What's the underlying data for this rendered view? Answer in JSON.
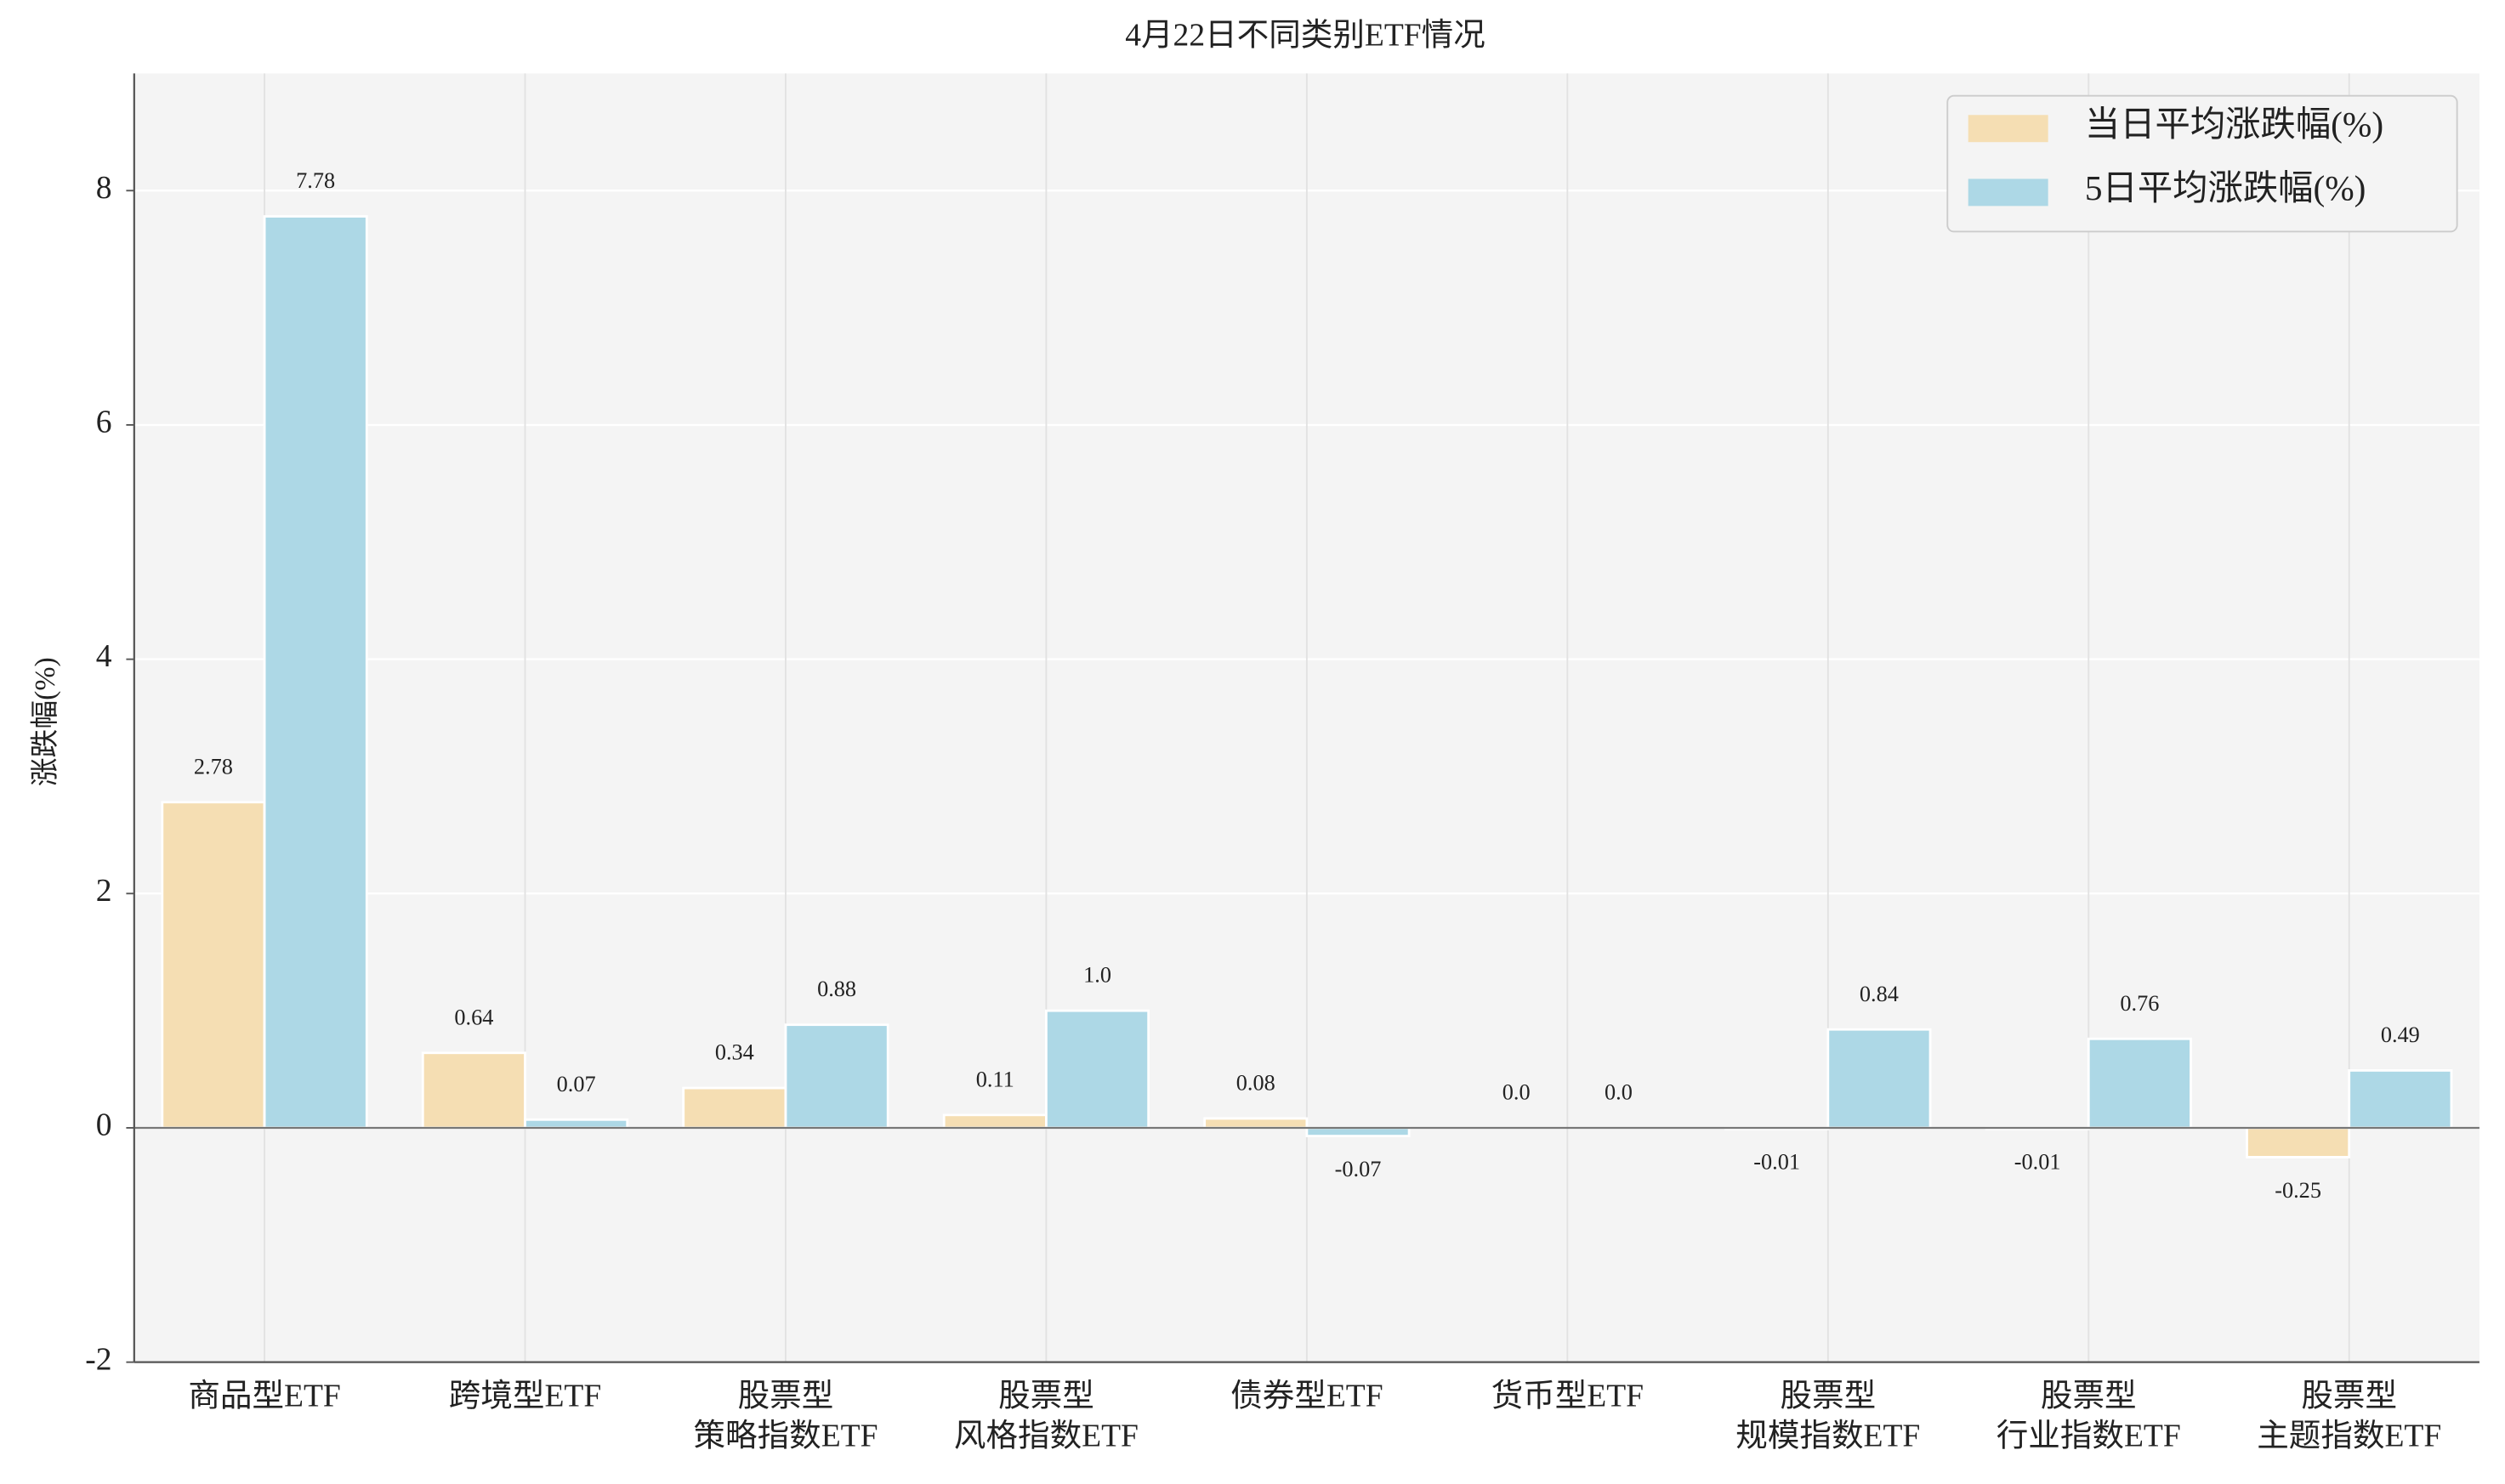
{
  "chart_data": {
    "type": "bar",
    "title": "4月22日不同类别ETF情况",
    "y_label": "涨跌幅(%)",
    "categories": [
      [
        "商品型ETF"
      ],
      [
        "跨境型ETF"
      ],
      [
        "股票型",
        "策略指数ETF"
      ],
      [
        "股票型",
        "风格指数ETF"
      ],
      [
        "债券型ETF"
      ],
      [
        "货币型ETF"
      ],
      [
        "股票型",
        "规模指数ETF"
      ],
      [
        "股票型",
        "行业指数ETF"
      ],
      [
        "股票型",
        "主题指数ETF"
      ]
    ],
    "series": [
      {
        "name": "当日平均涨跌幅(%)",
        "color": "#f5deb3",
        "values": [
          2.78,
          0.64,
          0.34,
          0.11,
          0.08,
          0.0,
          -0.01,
          -0.01,
          -0.25
        ],
        "value_labels": [
          "2.78",
          "0.64",
          "0.34",
          "0.11",
          "0.08",
          "0.0",
          "-0.01",
          "-0.01",
          "-0.25"
        ]
      },
      {
        "name": "5日平均涨跌幅(%)",
        "color": "#add8e6",
        "values": [
          7.78,
          0.07,
          0.88,
          1.0,
          -0.07,
          0.0,
          0.84,
          0.76,
          0.49
        ],
        "value_labels": [
          "7.78",
          "0.07",
          "0.88",
          "1.0",
          "-0.07",
          "0.0",
          "0.84",
          "0.76",
          "0.49"
        ]
      }
    ],
    "ylim": [
      -2,
      9
    ],
    "yticks": [
      -2,
      0,
      2,
      4,
      6,
      8
    ],
    "grid": true,
    "legend": "upper right"
  }
}
